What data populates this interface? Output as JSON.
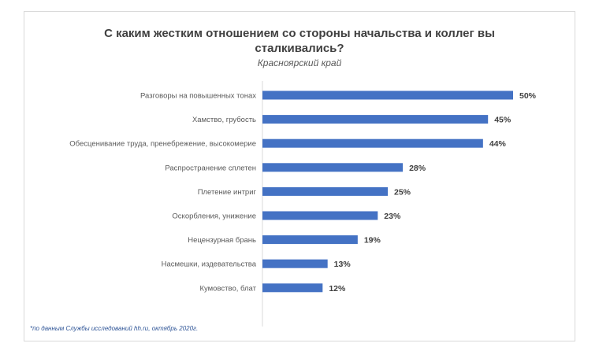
{
  "title_line1": "С каким жестким отношением со стороны начальства и коллег вы",
  "title_line2": "сталкивались?",
  "subtitle": "Красноярский край",
  "footnote": "*по данным Службы исследований hh.ru, октябрь 2020г.",
  "bar_color": "#4472c4",
  "chart_data": {
    "type": "bar",
    "orientation": "horizontal",
    "title": "С каким жестким отношением со стороны начальства и коллег вы сталкивались?",
    "subtitle": "Красноярский край",
    "categories": [
      "Разговоры на повышенных тонах",
      "Хамство, грубость",
      "Обесценивание труда, пренебрежение, высокомерие",
      "Распространение сплетен",
      "Плетение интриг",
      "Оскорбления, унижение",
      "Нецензурная брань",
      "Насмешки, издевательства",
      "Кумовство, блат"
    ],
    "values": [
      50,
      45,
      44,
      28,
      25,
      23,
      19,
      13,
      12
    ],
    "value_labels": [
      "50%",
      "45%",
      "44%",
      "28%",
      "25%",
      "23%",
      "19%",
      "13%",
      "12%"
    ],
    "unit": "%",
    "xlim": [
      0,
      50
    ],
    "grid": false,
    "legend": "none"
  }
}
